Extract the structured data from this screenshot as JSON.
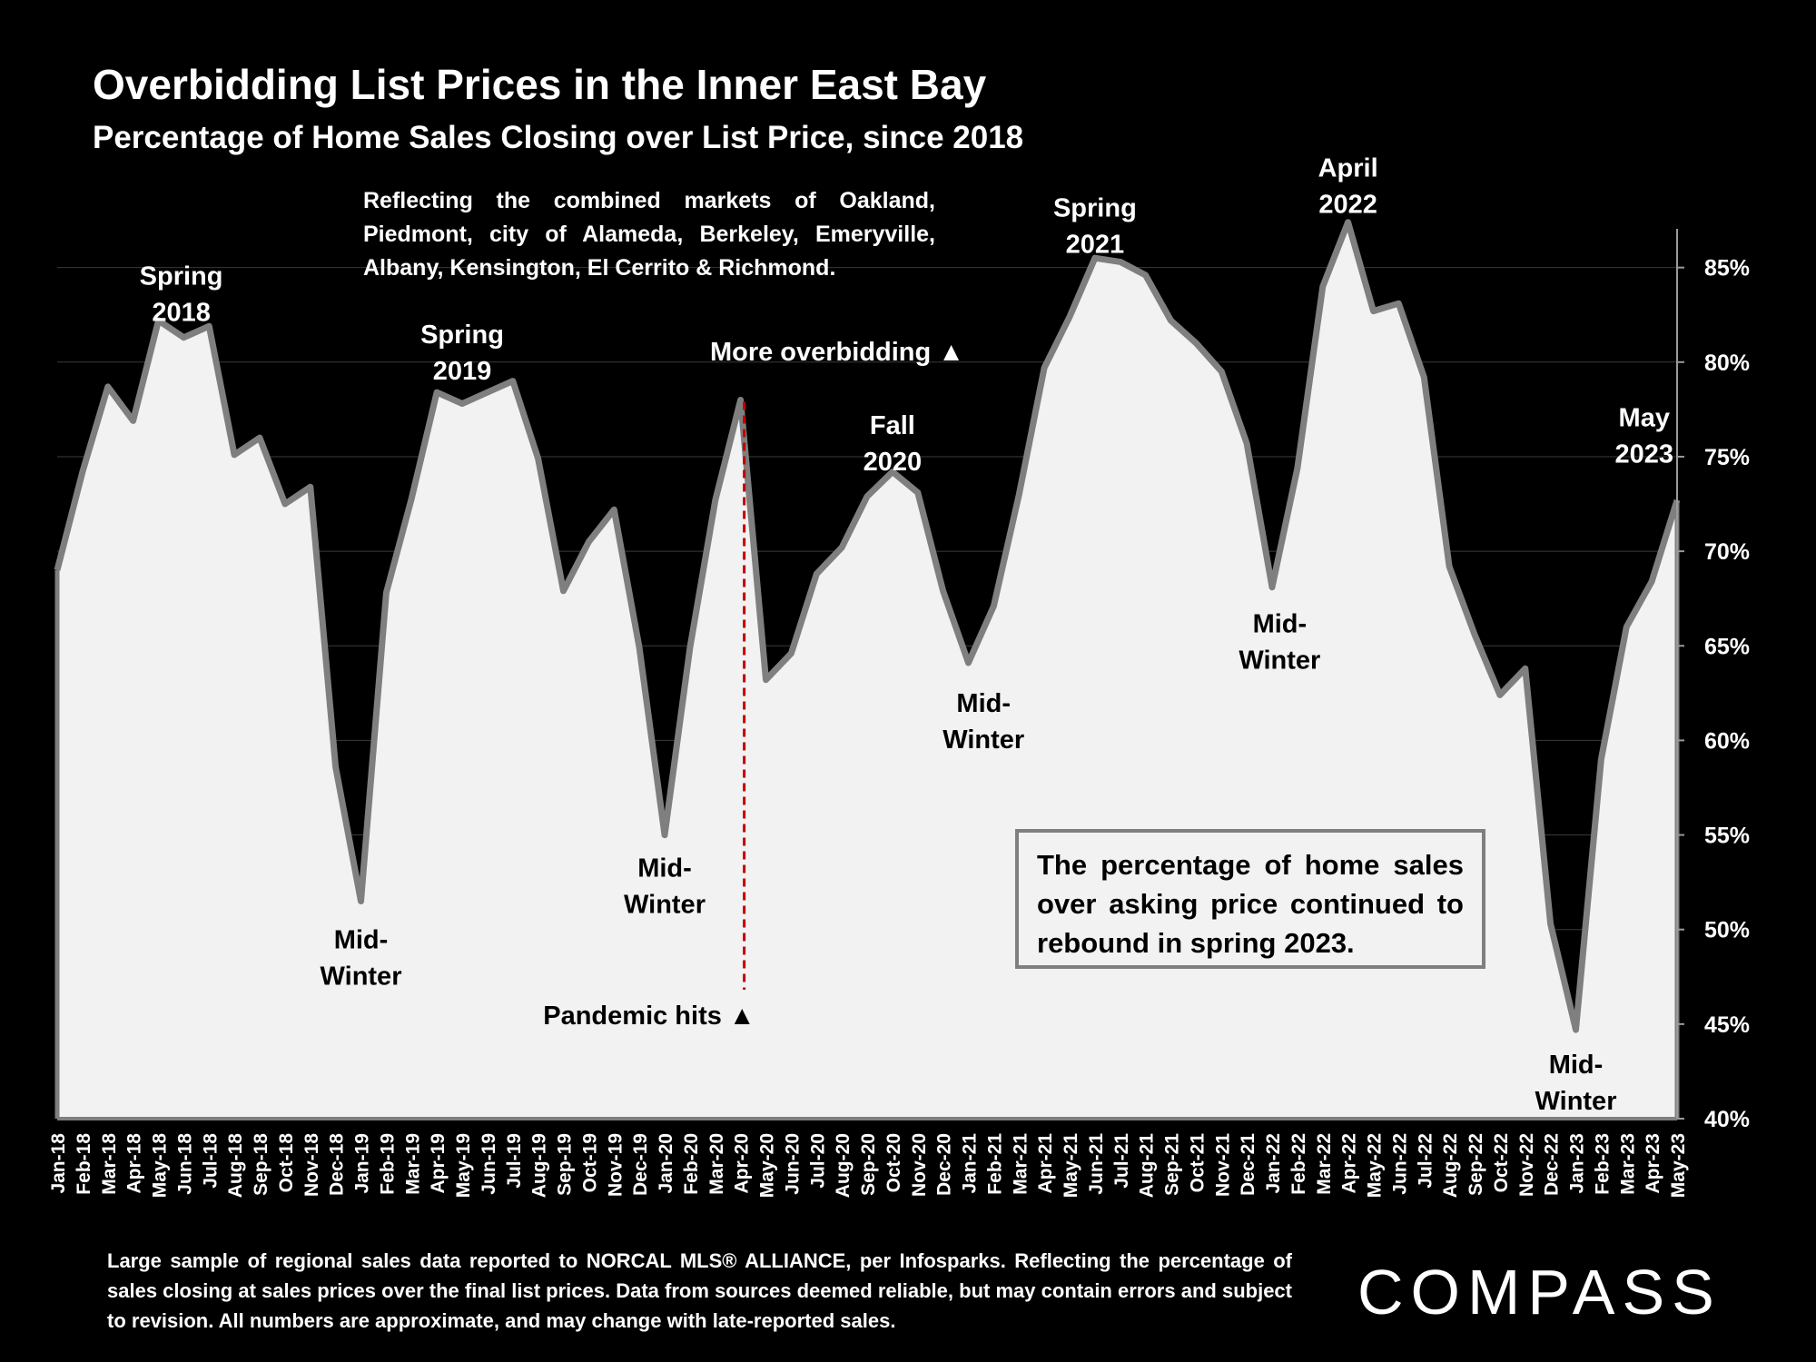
{
  "title": "Overbidding List Prices in the Inner East Bay",
  "subtitle": "Percentage of Home Sales Closing over List Price, since 2018",
  "note": "Reflecting the combined markets of Oakland, Piedmont, city of Alameda, Berkeley, Emeryville, Albany, Kensington, El Cerrito & Richmond.",
  "callout": "The percentage of home sales over asking price continued to rebound in spring 2023.",
  "footnote": "Large sample of regional sales data reported to NORCAL MLS® ALLIANCE, per Infosparks. Reflecting the percentage of sales closing at sales prices over the final list prices. Data from sources deemed reliable, but may contain errors and subject to revision. All numbers are approximate, and may change with late-reported sales.",
  "logo_text": "COMPASS",
  "colors": {
    "background": "#000000",
    "area_fill": "#f2f2f2",
    "line": "#7f7f7f",
    "pandemic_line": "#c00000"
  },
  "chart_data": {
    "type": "area",
    "y_axis_position": "right",
    "ylim": [
      40,
      87
    ],
    "yticks": [
      "40%",
      "45%",
      "50%",
      "55%",
      "60%",
      "65%",
      "70%",
      "75%",
      "80%",
      "85%"
    ],
    "ytick_values": [
      40,
      45,
      50,
      55,
      60,
      65,
      70,
      75,
      80,
      85
    ],
    "grid": true,
    "categories": [
      "Jan-18",
      "Feb-18",
      "Mar-18",
      "Apr-18",
      "May-18",
      "Jun-18",
      "Jul-18",
      "Aug-18",
      "Sep-18",
      "Oct-18",
      "Nov-18",
      "Dec-18",
      "Jan-19",
      "Feb-19",
      "Mar-19",
      "Apr-19",
      "May-19",
      "Jun-19",
      "Jul-19",
      "Aug-19",
      "Sep-19",
      "Oct-19",
      "Nov-19",
      "Dec-19",
      "Jan-20",
      "Feb-20",
      "Mar-20",
      "Apr-20",
      "May-20",
      "Jun-20",
      "Jul-20",
      "Aug-20",
      "Sep-20",
      "Oct-20",
      "Nov-20",
      "Dec-20",
      "Jan-21",
      "Feb-21",
      "Mar-21",
      "Apr-21",
      "May-21",
      "Jun-21",
      "Jul-21",
      "Aug-21",
      "Sep-21",
      "Oct-21",
      "Nov-21",
      "Dec-21",
      "Jan-22",
      "Feb-22",
      "Mar-22",
      "Apr-22",
      "May-22",
      "Jun-22",
      "Jul-22",
      "Aug-22",
      "Sep-22",
      "Oct-22",
      "Nov-22",
      "Dec-22",
      "Jan-23",
      "Feb-23",
      "Mar-23",
      "Apr-23",
      "May-23"
    ],
    "values": [
      69.0,
      74.2,
      78.7,
      76.9,
      82.2,
      81.3,
      81.9,
      75.1,
      76.0,
      72.5,
      73.4,
      58.6,
      51.5,
      67.8,
      72.8,
      78.4,
      77.8,
      78.4,
      79.0,
      74.9,
      67.9,
      70.5,
      72.2,
      64.9,
      55.0,
      64.9,
      72.7,
      78.0,
      63.2,
      64.6,
      68.8,
      70.2,
      72.9,
      74.2,
      73.1,
      67.9,
      64.1,
      67.1,
      73.0,
      79.7,
      82.4,
      85.5,
      85.3,
      84.6,
      82.2,
      81.0,
      79.5,
      75.7,
      68.1,
      74.4,
      84.0,
      87.4,
      82.7,
      83.1,
      79.2,
      69.2,
      65.6,
      62.4,
      63.8,
      50.3,
      44.7,
      59.0,
      66.0,
      68.4,
      72.7
    ],
    "annotations": [
      {
        "text": [
          "Spring",
          "2018"
        ],
        "index": 4.9,
        "value": 84.1,
        "style": "light"
      },
      {
        "text": [
          "Mid-",
          "Winter"
        ],
        "index": 12,
        "value": 49.0,
        "style": "dark"
      },
      {
        "text": [
          "Spring",
          "2019"
        ],
        "index": 16,
        "value": 81.0,
        "style": "light"
      },
      {
        "text": [
          "Mid-",
          "Winter"
        ],
        "index": 24,
        "value": 52.8,
        "style": "dark"
      },
      {
        "text": [
          "Fall",
          "2020"
        ],
        "index": 33.0,
        "value": 76.2,
        "style": "light"
      },
      {
        "text": [
          "Mid-",
          "Winter"
        ],
        "index": 36.6,
        "value": 61.5,
        "style": "dark"
      },
      {
        "text": [
          "Spring",
          "2021"
        ],
        "index": 41.0,
        "value": 87.7,
        "style": "light"
      },
      {
        "text": [
          "Mid-",
          "Winter"
        ],
        "index": 48.3,
        "value": 65.7,
        "style": "dark"
      },
      {
        "text": [
          "April",
          "2022"
        ],
        "index": 51,
        "value": 89.8,
        "style": "light"
      },
      {
        "text": [
          "Mid-",
          "Winter"
        ],
        "index": 60,
        "value": 42.4,
        "style": "dark"
      },
      {
        "text": [
          "May",
          "2023"
        ],
        "index": 62.7,
        "value": 76.6,
        "style": "light"
      }
    ],
    "pandemic_marker": {
      "index": 27,
      "label": "Pandemic hits ▲",
      "top_label": "More overbidding ▲"
    }
  }
}
